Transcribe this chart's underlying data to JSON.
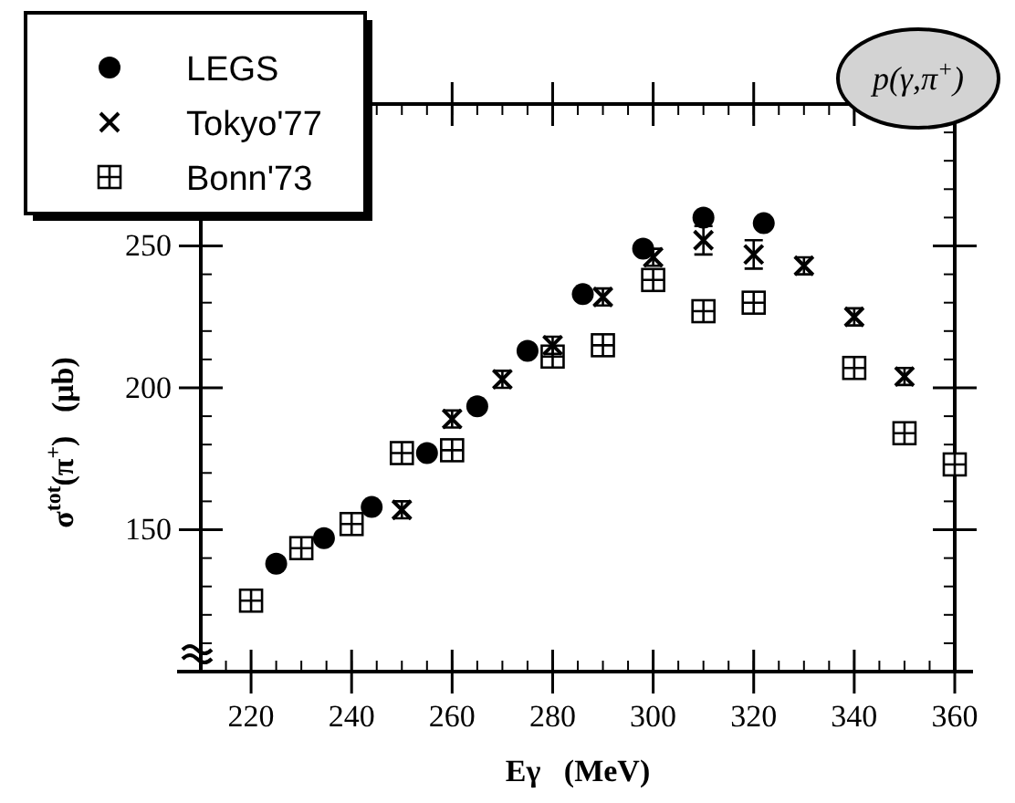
{
  "chart_data": {
    "type": "scatter",
    "xlabel": "Eγ   (MeV)",
    "ylabel": "σ$^{tot}$(π$^{+}$)   (μb)",
    "annotations": [
      "p(γ,π$^{+}$)"
    ],
    "xlim": [
      210,
      360
    ],
    "xticks": [
      220,
      240,
      260,
      280,
      300,
      320,
      340,
      360
    ],
    "ylim": [
      100,
      300
    ],
    "yticks": [
      150,
      200,
      250
    ],
    "legend": "top left",
    "grid": false,
    "series": [
      {
        "name": "LEGS",
        "color": "#000000",
        "marker": "circle",
        "x": [
          225,
          234.5,
          244,
          255,
          265,
          275,
          286,
          298,
          310,
          322
        ],
        "values": [
          138,
          147,
          158,
          177,
          193.5,
          213,
          233,
          249,
          260,
          258
        ]
      },
      {
        "name": "Tokyo'77",
        "color": "#000000",
        "marker": "cross",
        "x": [
          250,
          260,
          270,
          280,
          290,
          300,
          310,
          320,
          330,
          340,
          350
        ],
        "values": [
          157,
          189,
          203,
          215,
          232,
          246,
          252,
          247,
          243,
          225,
          204
        ],
        "errors": [
          3,
          3,
          3,
          3,
          3,
          3,
          5,
          5,
          3,
          3,
          3
        ]
      },
      {
        "name": "Bonn'73",
        "color": "#000000",
        "marker": "square",
        "x": [
          220,
          230,
          240,
          250,
          260,
          280,
          290,
          300,
          310,
          320,
          340,
          350,
          360
        ],
        "values": [
          125,
          143.5,
          152,
          177,
          178,
          211,
          215,
          238,
          227,
          230,
          207,
          184,
          173
        ]
      }
    ]
  }
}
